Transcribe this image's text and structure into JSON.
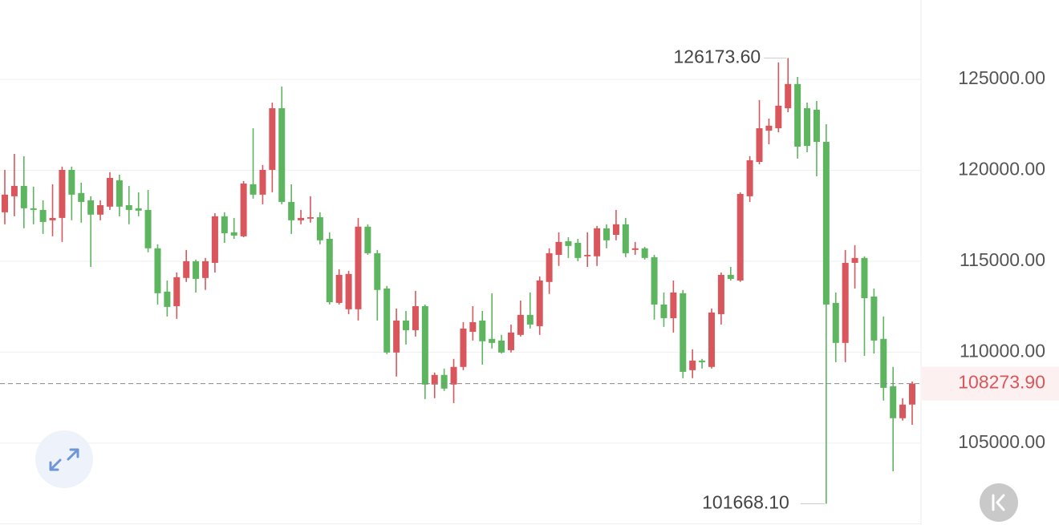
{
  "chart_data": {
    "type": "candlestick",
    "up_color": "#d9575c",
    "down_color": "#5db55f",
    "ylim": [
      100500,
      129360
    ],
    "yticks": [
      {
        "value": 105000,
        "label": "105000.00"
      },
      {
        "value": 110000,
        "label": "110000.00"
      },
      {
        "value": 115000,
        "label": "115000.00"
      },
      {
        "value": 120000,
        "label": "120000.00"
      },
      {
        "value": 125000,
        "label": "125000.00"
      }
    ],
    "grid": true,
    "open": [
      117690,
      118570,
      119140,
      117910,
      117820,
      117250,
      117380,
      120020,
      118750,
      118350,
      117560,
      118000,
      119450,
      118080,
      117910,
      117820,
      115710,
      113330,
      112530,
      114080,
      115000,
      114080,
      114910,
      117470,
      116590,
      116370,
      119230,
      118660,
      120020,
      123410,
      118260,
      117250,
      117340,
      117420,
      116230,
      112710,
      112360,
      112360,
      116900,
      115440,
      113500,
      109980,
      111740,
      111210,
      112530,
      108220,
      108750,
      108220,
      109190,
      111120,
      111740,
      110730,
      110640,
      110110,
      110950,
      112050,
      111430,
      113860,
      115350,
      116100,
      116010,
      115270,
      115270,
      116810,
      116450,
      117030,
      115620,
      115710,
      115220,
      112620,
      111870,
      113240,
      109010,
      109540,
      109190,
      112090,
      114250,
      113940,
      118570,
      120460,
      122180,
      122310,
      123410,
      124740,
      123410,
      123330,
      121560,
      112710,
      110510,
      114910,
      115180,
      113060,
      110730,
      108130,
      106370,
      107120
    ],
    "high": [
      120020,
      120900,
      120770,
      119100,
      118350,
      119230,
      120200,
      120200,
      119320,
      118570,
      118350,
      119890,
      119760,
      119140,
      118790,
      118920,
      115930,
      113940,
      114380,
      115620,
      115090,
      115180,
      117640,
      117690,
      117380,
      119410,
      122310,
      120290,
      123720,
      124600,
      119230,
      117820,
      118570,
      117690,
      116590,
      114560,
      114470,
      117380,
      117030,
      115620,
      113640,
      112400,
      112270,
      113370,
      112620,
      108880,
      109100,
      109630,
      111650,
      112530,
      112270,
      113240,
      110950,
      111520,
      112840,
      113280,
      114160,
      115710,
      116590,
      116320,
      116230,
      116590,
      116940,
      117030,
      117820,
      117380,
      116060,
      115790,
      115350,
      113280,
      113940,
      113420,
      110160,
      109630,
      112400,
      114380,
      114690,
      118790,
      120770,
      123860,
      122840,
      125930,
      126173.6,
      125130,
      123720,
      123810,
      122530,
      113280,
      115620,
      115880,
      115270,
      113500,
      111960,
      109190,
      107470,
      108390
    ],
    "low": [
      117030,
      117470,
      116810,
      117030,
      116500,
      116370,
      116060,
      117250,
      117120,
      114690,
      117250,
      117820,
      117470,
      117030,
      117470,
      115490,
      112620,
      111960,
      111830,
      113860,
      113280,
      113420,
      114380,
      116010,
      116230,
      116320,
      118440,
      118130,
      118790,
      118130,
      116500,
      117030,
      117120,
      115930,
      112620,
      112620,
      112090,
      111740,
      115350,
      111740,
      109890,
      108660,
      110420,
      110860,
      107420,
      107470,
      107870,
      107200,
      109010,
      110640,
      109320,
      110200,
      109930,
      109980,
      110860,
      111300,
      110950,
      113200,
      114740,
      115180,
      115000,
      114690,
      114740,
      115710,
      116150,
      115220,
      115350,
      115090,
      111790,
      111390,
      111080,
      108570,
      108570,
      109100,
      109100,
      111520,
      113940,
      113860,
      118260,
      120330,
      121430,
      122090,
      123190,
      120640,
      120990,
      119670,
      101668.1,
      109450,
      109450,
      113500,
      109800,
      109930,
      107340,
      103460,
      106240,
      106010
    ],
    "close": [
      118660,
      119140,
      117910,
      117820,
      117160,
      117380,
      120020,
      118660,
      118260,
      117560,
      118080,
      119580,
      118000,
      117820,
      117780,
      115710,
      113240,
      112490,
      114120,
      115000,
      114030,
      115000,
      117470,
      116540,
      116410,
      119270,
      118660,
      120020,
      123410,
      118260,
      117250,
      117380,
      117420,
      116150,
      112750,
      114250,
      114300,
      116900,
      115440,
      113420,
      109980,
      111740,
      111210,
      112530,
      108220,
      108750,
      108000,
      109190,
      111300,
      111650,
      110600,
      110510,
      109980,
      111080,
      112050,
      111520,
      113940,
      115440,
      116060,
      115840,
      115180,
      115350,
      116810,
      116150,
      117030,
      115440,
      115710,
      115180,
      112620,
      111870,
      113280,
      108920,
      109540,
      109450,
      112180,
      114250,
      114030,
      118700,
      120550,
      122310,
      122450,
      123550,
      124740,
      121300,
      121340,
      121560,
      112620,
      110510,
      114910,
      115180,
      112970,
      110640,
      108040,
      106370,
      107120,
      108273.9
    ],
    "high_marker": {
      "value": 126173.6,
      "label": "126173.60"
    },
    "low_marker": {
      "value": 101668.1,
      "label": "101668.10"
    },
    "last_price": {
      "value": 108273.9,
      "label": "108273.90"
    }
  }
}
